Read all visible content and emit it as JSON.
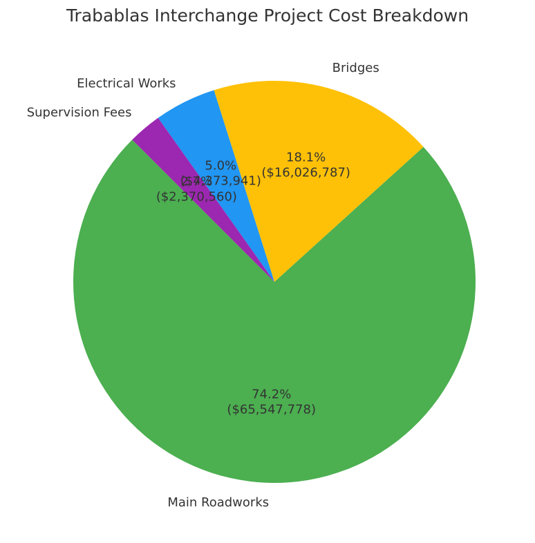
{
  "chart_data": {
    "type": "pie",
    "title": "Trabablas Interchange Project Cost Breakdown",
    "start_angle_deg": 135,
    "direction": "counterclockwise",
    "slices": [
      {
        "label": "Main Roadworks",
        "value": 65547778,
        "percent_label": "74.2%",
        "value_label": "($65,547,778)",
        "color": "#4CAF50"
      },
      {
        "label": "Bridges",
        "value": 16026787,
        "percent_label": "18.1%",
        "value_label": "($16,026,787)",
        "color": "#FFC107"
      },
      {
        "label": "Electrical Works",
        "value": 4373941,
        "percent_label": "5.0%",
        "value_label": "($4,373,941)",
        "color": "#2196F3"
      },
      {
        "label": "Supervision Fees",
        "value": 2370560,
        "percent_label": "2.7%",
        "value_label": "($2,370,560)",
        "color": "#9C27B0"
      }
    ]
  }
}
